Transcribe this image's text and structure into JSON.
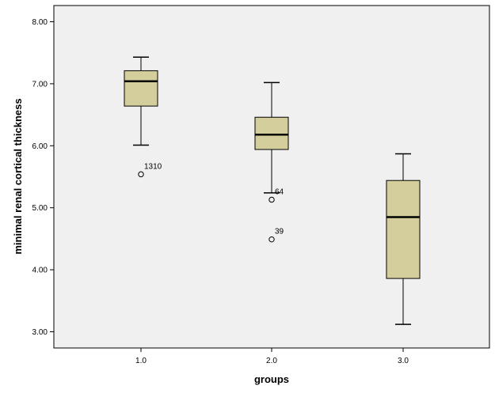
{
  "chart_data": {
    "type": "boxplot",
    "xlabel": "groups",
    "ylabel": "minimal renal cortical thickness",
    "ylim": [
      2.75,
      8.3
    ],
    "yticks": [
      "3.00",
      "4.00",
      "5.00",
      "6.00",
      "7.00",
      "8.00"
    ],
    "ytick_values": [
      3.0,
      4.0,
      5.0,
      6.0,
      7.0,
      8.0
    ],
    "grid": false,
    "colors": {
      "plot_background": "#f0f0f0",
      "box_fill": "#d3ce9b",
      "stroke": "#000000"
    },
    "boxes": [
      {
        "category": "1.0",
        "whisker_low": 6.01,
        "q1": 6.64,
        "median": 7.04,
        "q3": 7.21,
        "whisker_high": 7.43,
        "outliers": [
          {
            "value": 5.54,
            "label": "1310"
          }
        ]
      },
      {
        "category": "2.0",
        "whisker_low": 5.24,
        "q1": 5.94,
        "median": 6.18,
        "q3": 6.46,
        "whisker_high": 7.02,
        "outliers": [
          {
            "value": 5.13,
            "label": "64"
          },
          {
            "value": 4.49,
            "label": "39"
          }
        ]
      },
      {
        "category": "3.0",
        "whisker_low": 3.12,
        "q1": 3.86,
        "median": 4.85,
        "q3": 5.44,
        "whisker_high": 5.87,
        "outliers": []
      }
    ]
  }
}
